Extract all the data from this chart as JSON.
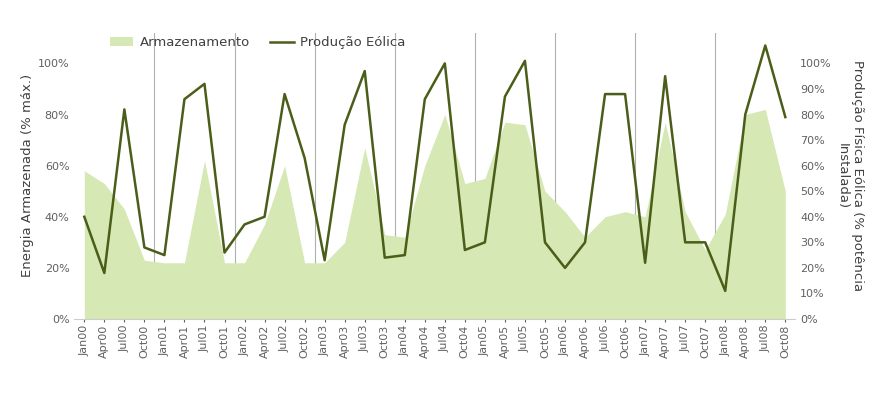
{
  "ylabel_left": "Energia Armazenada (% máx.)",
  "ylabel_right": "Produção Física Eólica (% potência\nInstalada)",
  "legend_area": "Armazenamento",
  "legend_line": "Produção Eólica",
  "area_color": "#d6e8b4",
  "line_color": "#4a5e1a",
  "line_width": 1.8,
  "background_color": "#ffffff",
  "ylim_left": [
    0,
    1.12
  ],
  "ylim_right": [
    0,
    1.12
  ],
  "tick_labels": [
    "Jan00",
    "Apr00",
    "Jul00",
    "Oct00",
    "Jan01",
    "Apr01",
    "Jul01",
    "Oct01",
    "Jan02",
    "Apr02",
    "Jul02",
    "Oct02",
    "Jan03",
    "Apr03",
    "Jul03",
    "Oct03",
    "Jan04",
    "Apr04",
    "Jul04",
    "Oct04",
    "Jan05",
    "Apr05",
    "Jul05",
    "Oct05",
    "Jan06",
    "Apr06",
    "Jul06",
    "Oct06",
    "Jan07",
    "Apr07",
    "Jul07",
    "Oct07",
    "Jan08",
    "Apr08",
    "Jul08",
    "Oct08"
  ],
  "area_values": [
    0.58,
    0.53,
    0.43,
    0.23,
    0.22,
    0.22,
    0.62,
    0.22,
    0.22,
    0.37,
    0.6,
    0.22,
    0.22,
    0.3,
    0.67,
    0.33,
    0.32,
    0.6,
    0.8,
    0.53,
    0.55,
    0.77,
    0.76,
    0.5,
    0.42,
    0.32,
    0.4,
    0.42,
    0.4,
    0.77,
    0.42,
    0.27,
    0.41,
    0.8,
    0.82,
    0.5
  ],
  "line_values": [
    0.4,
    0.18,
    0.82,
    0.28,
    0.25,
    0.86,
    0.92,
    0.26,
    0.37,
    0.4,
    0.88,
    0.63,
    0.23,
    0.76,
    0.97,
    0.24,
    0.25,
    0.86,
    1.0,
    0.27,
    0.3,
    0.87,
    1.01,
    0.3,
    0.2,
    0.3,
    0.88,
    0.88,
    0.22,
    0.95,
    0.3,
    0.3,
    0.11,
    0.8,
    1.07,
    0.79
  ],
  "vline_x": [
    3.5,
    7.5,
    11.5,
    15.5,
    19.5,
    23.5,
    27.5,
    31.5
  ],
  "vline_color": "#b0b0b0",
  "label_color": "#404040",
  "tick_color": "#606060",
  "label_fontsize": 9.5,
  "tick_fontsize": 8,
  "legend_fontsize": 9.5,
  "left_yticks": [
    0.0,
    0.2,
    0.4,
    0.6,
    0.8,
    1.0
  ],
  "right_yticks": [
    0.0,
    0.1,
    0.2,
    0.3,
    0.4,
    0.5,
    0.6,
    0.7,
    0.8,
    0.9,
    1.0
  ]
}
